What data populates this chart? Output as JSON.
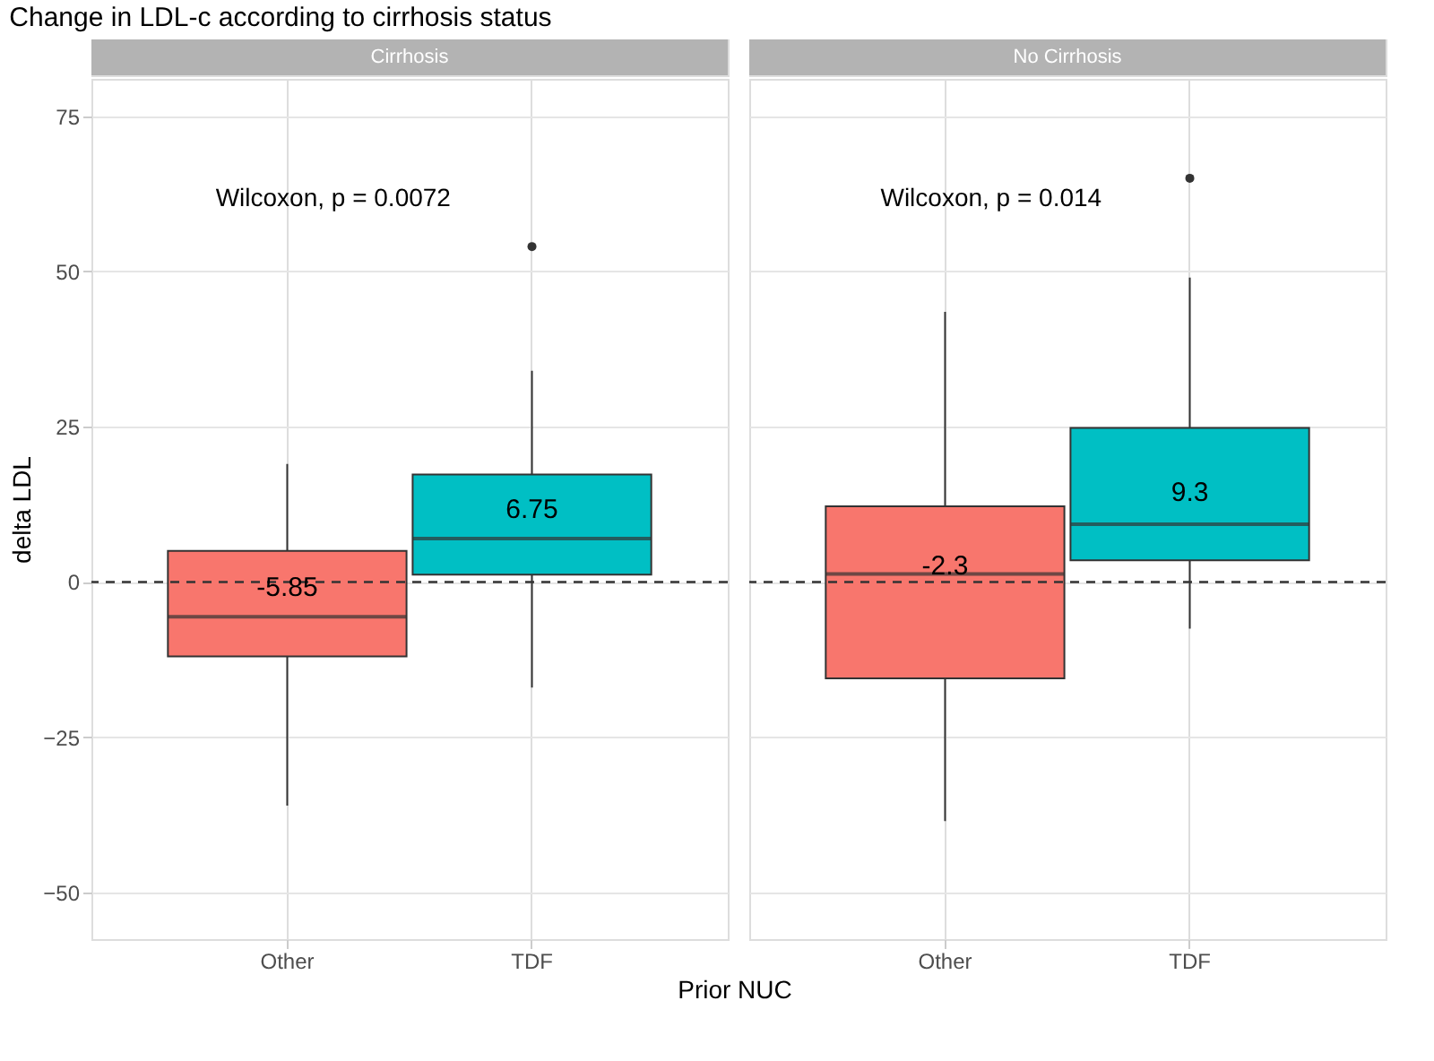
{
  "chart_data": [
    {
      "type": "box",
      "title": "Change in LDL-c according to cirrhosis status",
      "subtitle": "Cirrhosis",
      "xlabel": "Prior NUC",
      "ylabel": "delta LDL",
      "categories": [
        "Other",
        "TDF"
      ],
      "colors": [
        "#f8766d",
        "#00bfc4"
      ],
      "boxes": [
        {
          "low": -36,
          "q1": -12,
          "median": -5.6,
          "q3": 5,
          "high": 19
        },
        {
          "low": -17,
          "q1": 1.2,
          "median": 7,
          "q3": 17.3,
          "high": 34,
          "outliers": [
            54
          ]
        }
      ],
      "ylim": [
        -57.5,
        81
      ],
      "yticks": [
        -50,
        -25,
        0,
        25,
        50,
        75
      ],
      "grid": true,
      "ref_lines": [
        {
          "axis": "y",
          "value": 0,
          "line_style": "dashed",
          "color": "#333333"
        }
      ],
      "annotations": [
        "Wilcoxon, p = 0.0072",
        {
          "text": "-5.85",
          "x": "Other",
          "y": -0.8
        },
        {
          "text": "6.75",
          "x": "TDF",
          "y": 11.7
        }
      ]
    },
    {
      "type": "box",
      "subtitle": "No Cirrhosis",
      "categories": [
        "Other",
        "TDF"
      ],
      "colors": [
        "#f8766d",
        "#00bfc4"
      ],
      "boxes": [
        {
          "low": -38.5,
          "q1": -15.5,
          "median": 1.3,
          "q3": 12.2,
          "high": 43.5
        },
        {
          "low": -7.5,
          "q1": 3.5,
          "median": 9.3,
          "q3": 24.8,
          "high": 49,
          "outliers": [
            65
          ]
        }
      ],
      "ylim": [
        -57.5,
        81
      ],
      "yticks": [
        -50,
        -25,
        0,
        25,
        50,
        75
      ],
      "grid": true,
      "tick_labels": "x",
      "ref_lines": [
        {
          "axis": "y",
          "value": 0,
          "line_style": "dashed",
          "color": "#333333"
        }
      ],
      "annotations": [
        "Wilcoxon, p = 0.014",
        {
          "text": "-2.3",
          "x": "Other",
          "y": 2.7
        },
        {
          "text": "9.3",
          "x": "TDF",
          "y": 14.5
        }
      ]
    }
  ]
}
